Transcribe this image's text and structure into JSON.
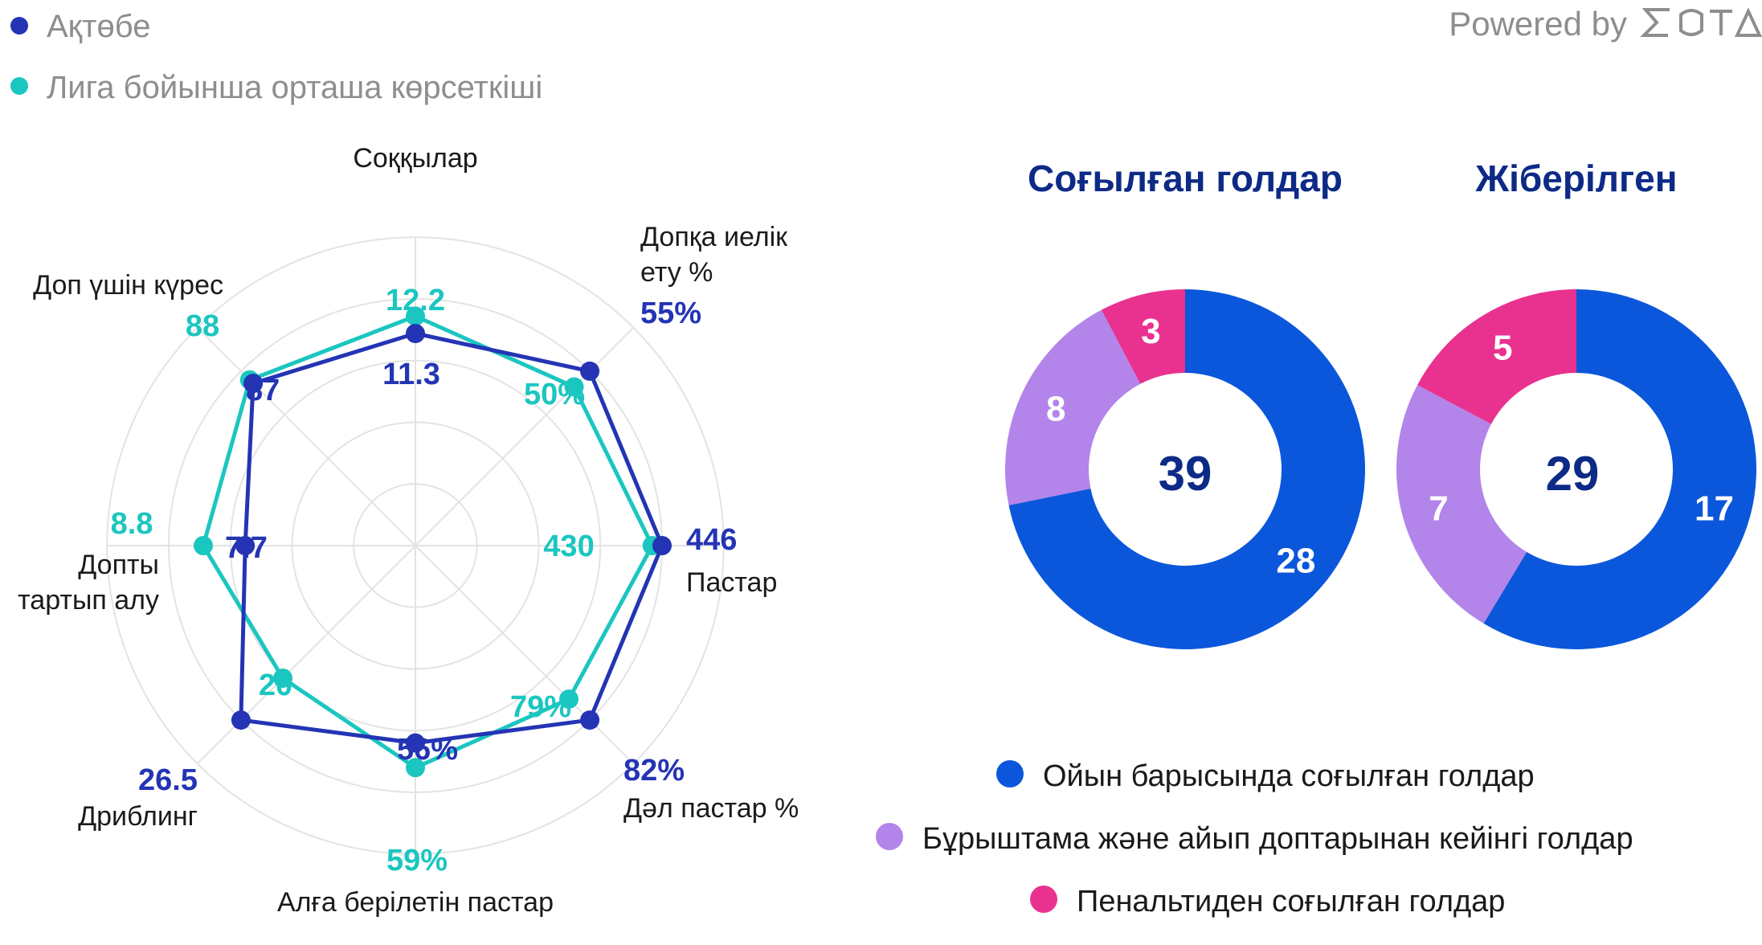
{
  "brand": {
    "powered_by": "Powered by",
    "logo_text": "SOTA"
  },
  "colors": {
    "team": "#2434b4",
    "league": "#1bc6c0",
    "grid": "#e3e3e3",
    "open_play": "#0b57db",
    "set_piece": "#b384ea",
    "penalty": "#e9318f",
    "title": "#0d2a86"
  },
  "chart_data": [
    {
      "type": "radar",
      "legend": [
        {
          "key": "team",
          "label": "Ақтөбе"
        },
        {
          "key": "league",
          "label": "Лига бойынша орташа көрсеткіші"
        }
      ],
      "axes": [
        {
          "label_lines": [
            "Соққылар"
          ],
          "team": "11.3",
          "league": "12.2",
          "team_norm": 0.86,
          "league_norm": 0.93
        },
        {
          "label_lines": [
            "Допқа иелік",
            "ету %"
          ],
          "team": "55%",
          "league": "50%",
          "team_norm": 1.0,
          "league_norm": 0.91
        },
        {
          "label_lines": [
            "Пастар"
          ],
          "team": "446",
          "league": "430",
          "team_norm": 1.0,
          "league_norm": 0.96
        },
        {
          "label_lines": [
            "Дәл пастар %"
          ],
          "team": "82%",
          "league": "79%",
          "team_norm": 1.0,
          "league_norm": 0.88
        },
        {
          "label_lines": [
            "Алға берілетін пастар"
          ],
          "team": "56%",
          "league": "59%",
          "team_norm": 0.8,
          "league_norm": 0.9
        },
        {
          "label_lines": [
            "Дриблинг"
          ],
          "team": "26.5",
          "league": "20",
          "team_norm": 1.0,
          "league_norm": 0.76
        },
        {
          "label_lines": [
            "Допты",
            "тартып алу"
          ],
          "team": "7.7",
          "league": "8.8",
          "team_norm": 0.69,
          "league_norm": 0.86
        },
        {
          "label_lines": [
            "Доп үшін күрес"
          ],
          "team": "87",
          "league": "88",
          "team_norm": 0.93,
          "league_norm": 0.95
        }
      ]
    },
    {
      "type": "pie",
      "title": "Соғылған голдар",
      "total": "39",
      "slices": [
        {
          "key": "open_play",
          "value": 28
        },
        {
          "key": "set_piece",
          "value": 8
        },
        {
          "key": "penalty",
          "value": 3
        }
      ]
    },
    {
      "type": "pie",
      "title": "Жіберілген",
      "total": "29",
      "slices": [
        {
          "key": "open_play",
          "value": 17
        },
        {
          "key": "set_piece",
          "value": 7
        },
        {
          "key": "penalty",
          "value": 5
        }
      ]
    }
  ],
  "goal_legend": [
    {
      "key": "open_play",
      "label": "Ойын барысында соғылған голдар"
    },
    {
      "key": "set_piece",
      "label": "Бұрыштама және айып доптарынан кейінгі голдар"
    },
    {
      "key": "penalty",
      "label": "Пенальтиден соғылған голдар"
    }
  ]
}
